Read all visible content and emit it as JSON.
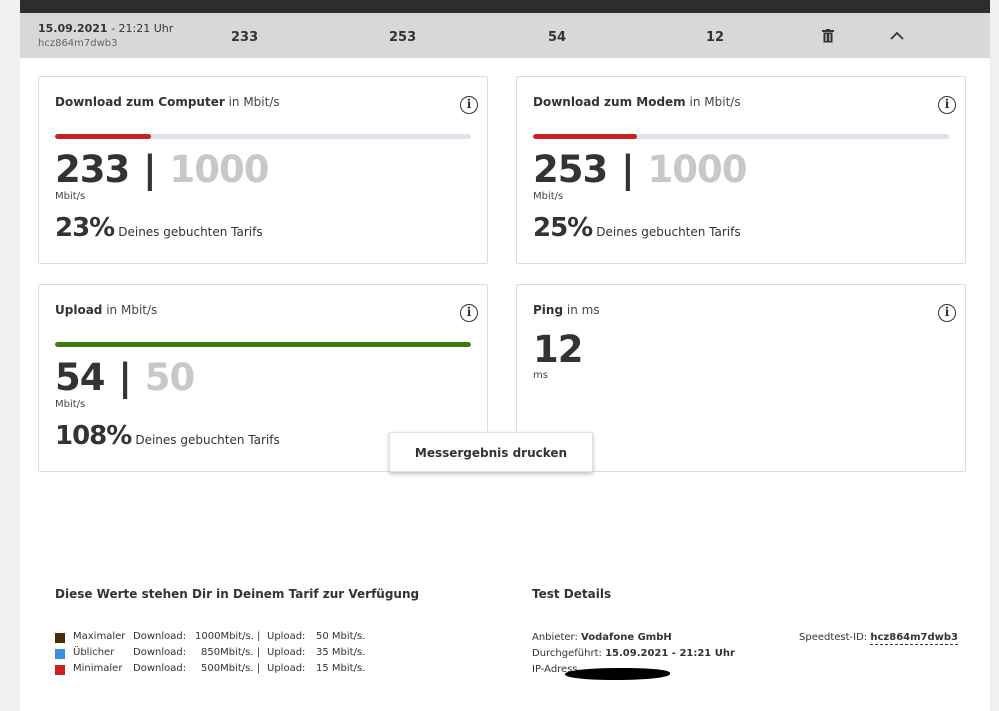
{
  "header": {
    "date": "15.09.2021",
    "time": "- 21:21 Uhr",
    "speedtest_id": "hcz864m7dwb3",
    "values": [
      "233",
      "253",
      "54",
      "12"
    ],
    "icons": [
      "trash-icon",
      "chevron-up-icon"
    ]
  },
  "cards": {
    "download_computer": {
      "title": "Download zum Computer",
      "unit_suffix": "in Mbit/s",
      "value": "233",
      "max": "1000",
      "unit": "Mbit/s",
      "percent": "23%",
      "percent_text": "Deines gebuchten Tarifs",
      "bar_fraction": 0.23,
      "bar_color": "#cc1f1f"
    },
    "download_modem": {
      "title": "Download zum Modem",
      "unit_suffix": "in Mbit/s",
      "value": "253",
      "max": "1000",
      "unit": "Mbit/s",
      "percent": "25%",
      "percent_text": "Deines gebuchten Tarifs",
      "bar_fraction": 0.25,
      "bar_color": "#cc1f1f"
    },
    "upload": {
      "title": "Upload",
      "unit_suffix": "in Mbit/s",
      "value": "54",
      "max": "50",
      "unit": "Mbit/s",
      "percent": "108%",
      "percent_text": "Deines gebuchten Tarifs",
      "bar_fraction": 1.0,
      "bar_color": "#3a7d0a"
    },
    "ping": {
      "title": "Ping",
      "unit_suffix": "in ms",
      "value": "12",
      "unit": "ms"
    }
  },
  "print_button": "Messergebnis drucken",
  "tarif": {
    "title": "Diese Werte stehen Dir in Deinem Tarif zur Verfügung",
    "rows": [
      {
        "label": "Maximaler",
        "dl_label": "Download:",
        "dl": "1000Mbit/s. |",
        "ul_label": "Upload:",
        "ul": "50 Mbit/s.",
        "color": "#4a2e0c"
      },
      {
        "label": "Üblicher",
        "dl_label": "Download:",
        "dl": "850Mbit/s. |",
        "ul_label": "Upload:",
        "ul": "35 Mbit/s.",
        "color": "#3a8fe0"
      },
      {
        "label": "Minimaler",
        "dl_label": "Download:",
        "dl": "500Mbit/s. |",
        "ul_label": "Upload:",
        "ul": "15 Mbit/s.",
        "color": "#cc1f1f"
      }
    ]
  },
  "test_details": {
    "title": "Test Details",
    "anbieter_label": "Anbieter:",
    "anbieter": "Vodafone GmbH",
    "durchgefuehrt_label": "Durchgeführt:",
    "durchgefuehrt": "15.09.2021 - 21:21 Uhr",
    "ip_label": "IP-Adress",
    "speedtest_label": "Speedtest-ID:",
    "speedtest_id": "hcz864m7dwb3"
  }
}
